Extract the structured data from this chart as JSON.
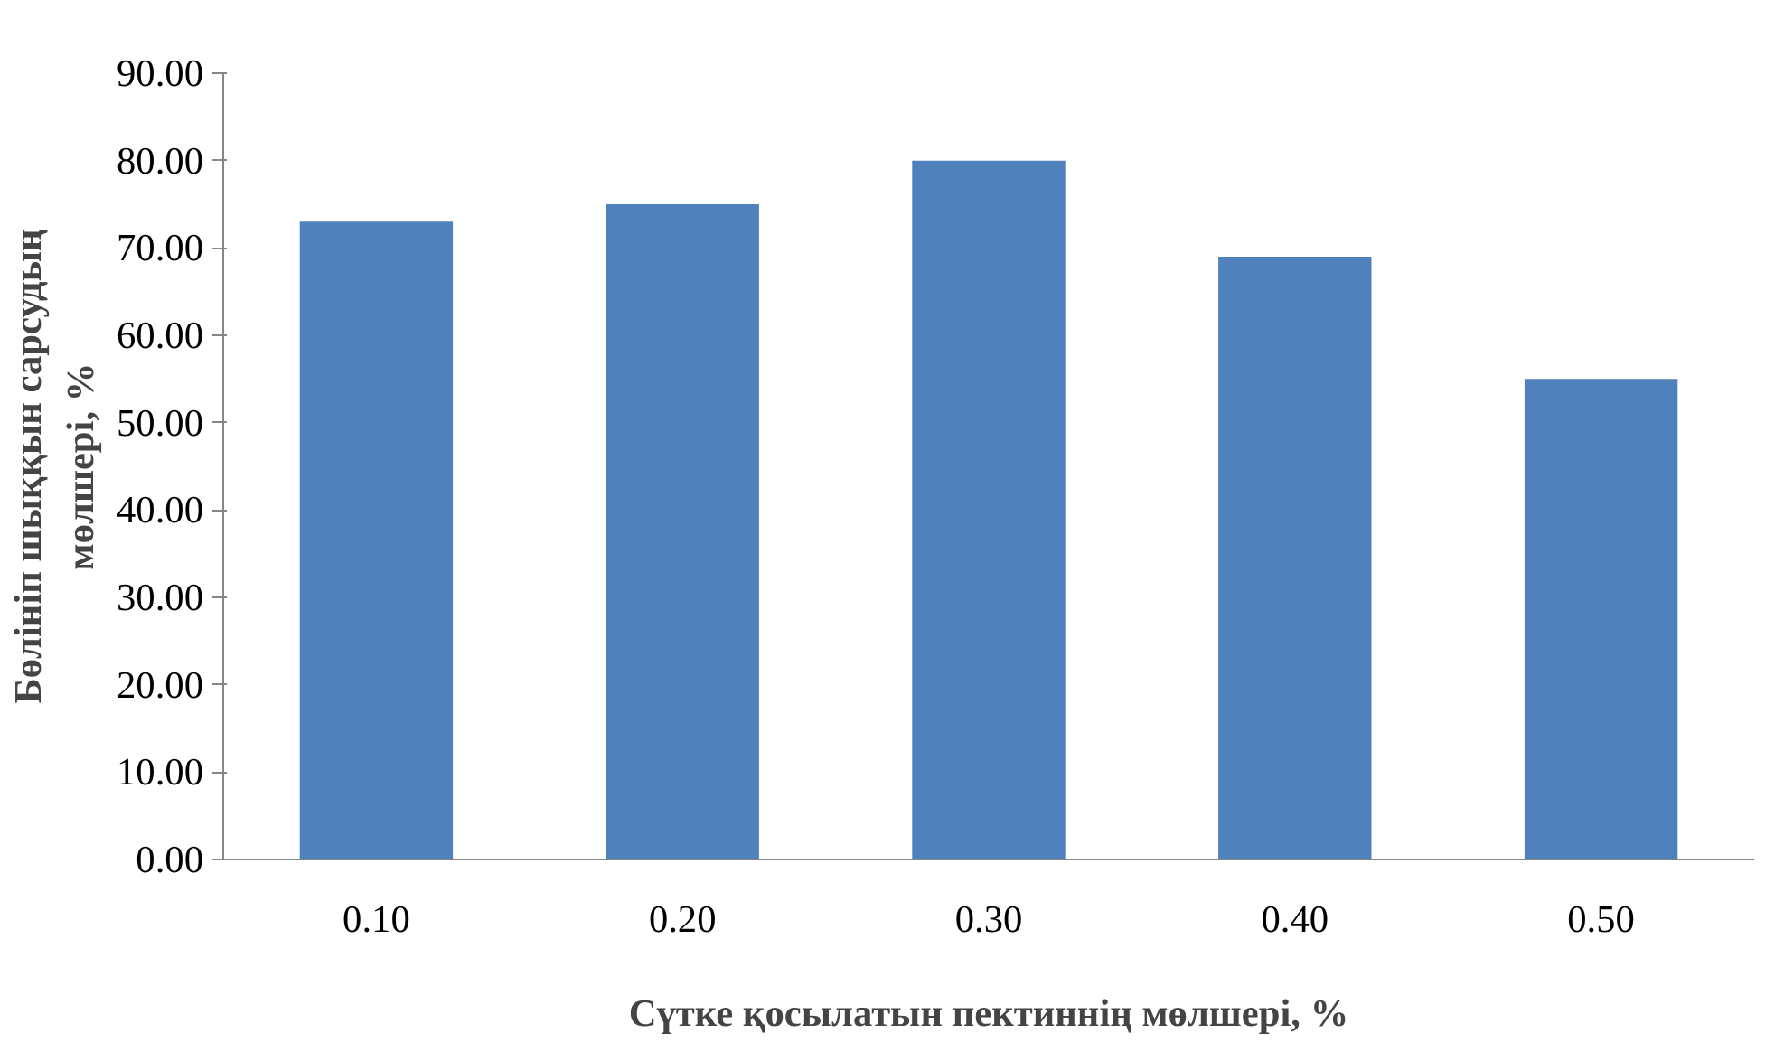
{
  "chart_data": {
    "type": "bar",
    "xlabel": "Сүтке қосылатын пектиннің мөлшері, %",
    "ylabel": "Бөлініп шыққын сарсудың мөлшері, %",
    "categories": [
      "0.10",
      "0.20",
      "0.30",
      "0.40",
      "0.50"
    ],
    "values": [
      73,
      75,
      80,
      69,
      55
    ],
    "color": "#4f81bd",
    "ylim": [
      0,
      90
    ],
    "yticks": [
      {
        "value": 0,
        "label": "0.00"
      },
      {
        "value": 10,
        "label": "10.00"
      },
      {
        "value": 20,
        "label": "20.00"
      },
      {
        "value": 30,
        "label": "30.00"
      },
      {
        "value": 40,
        "label": "40.00"
      },
      {
        "value": 50,
        "label": "50.00"
      },
      {
        "value": 60,
        "label": "60.00"
      },
      {
        "value": 70,
        "label": "70.00"
      },
      {
        "value": 80,
        "label": "80.00"
      },
      {
        "value": 90,
        "label": "90.00"
      }
    ],
    "grid": false
  }
}
